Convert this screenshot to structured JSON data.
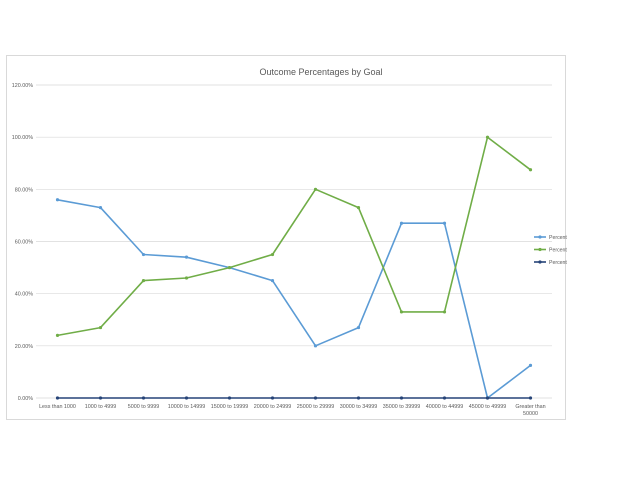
{
  "chart_data": {
    "type": "line",
    "title": "Outcome Percentages by Goal",
    "xlabel": "",
    "ylabel": "",
    "categories": [
      "Less than 1000",
      "1000 to 4999",
      "5000 to 9999",
      "10000 to 14999",
      "15000 to 19999",
      "20000 to 24999",
      "25000 to 29999",
      "30000 to 34999",
      "35000 to 39999",
      "40000 to 44999",
      "45000 to 49999",
      "Greater than 50000"
    ],
    "category_lines": [
      [
        "Less than 1000"
      ],
      [
        "1000 to 4999"
      ],
      [
        "5000 to 9999"
      ],
      [
        "10000 to 14999"
      ],
      [
        "15000 to 19999"
      ],
      [
        "20000 to 24999"
      ],
      [
        "25000 to 29999"
      ],
      [
        "30000 to 34999"
      ],
      [
        "35000 to 39999"
      ],
      [
        "40000 to 44999"
      ],
      [
        "45000 to 49999"
      ],
      [
        "Greater than",
        "50000"
      ]
    ],
    "ylim": [
      0,
      120
    ],
    "yticks": [
      0,
      20,
      40,
      60,
      80,
      100,
      120
    ],
    "ytick_labels": [
      "0.00%",
      "20.00%",
      "40.00%",
      "60.00%",
      "80.00%",
      "100.00%",
      "120.00%"
    ],
    "grid": true,
    "legend_position": "right",
    "series": [
      {
        "name": "Percentage Successful",
        "color": "#5b9bd5",
        "values": [
          76,
          73,
          55,
          54,
          50,
          45,
          20,
          27,
          67,
          67,
          0,
          12.5
        ]
      },
      {
        "name": "Percentage Failed",
        "color": "#70ad47",
        "values": [
          24,
          27,
          45,
          46,
          50,
          55,
          80,
          73,
          33,
          33,
          100,
          87.5
        ]
      },
      {
        "name": "Percentaged Canceled",
        "color": "#264478",
        "values": [
          0,
          0,
          0,
          0,
          0,
          0,
          0,
          0,
          0,
          0,
          0,
          0
        ]
      }
    ]
  }
}
